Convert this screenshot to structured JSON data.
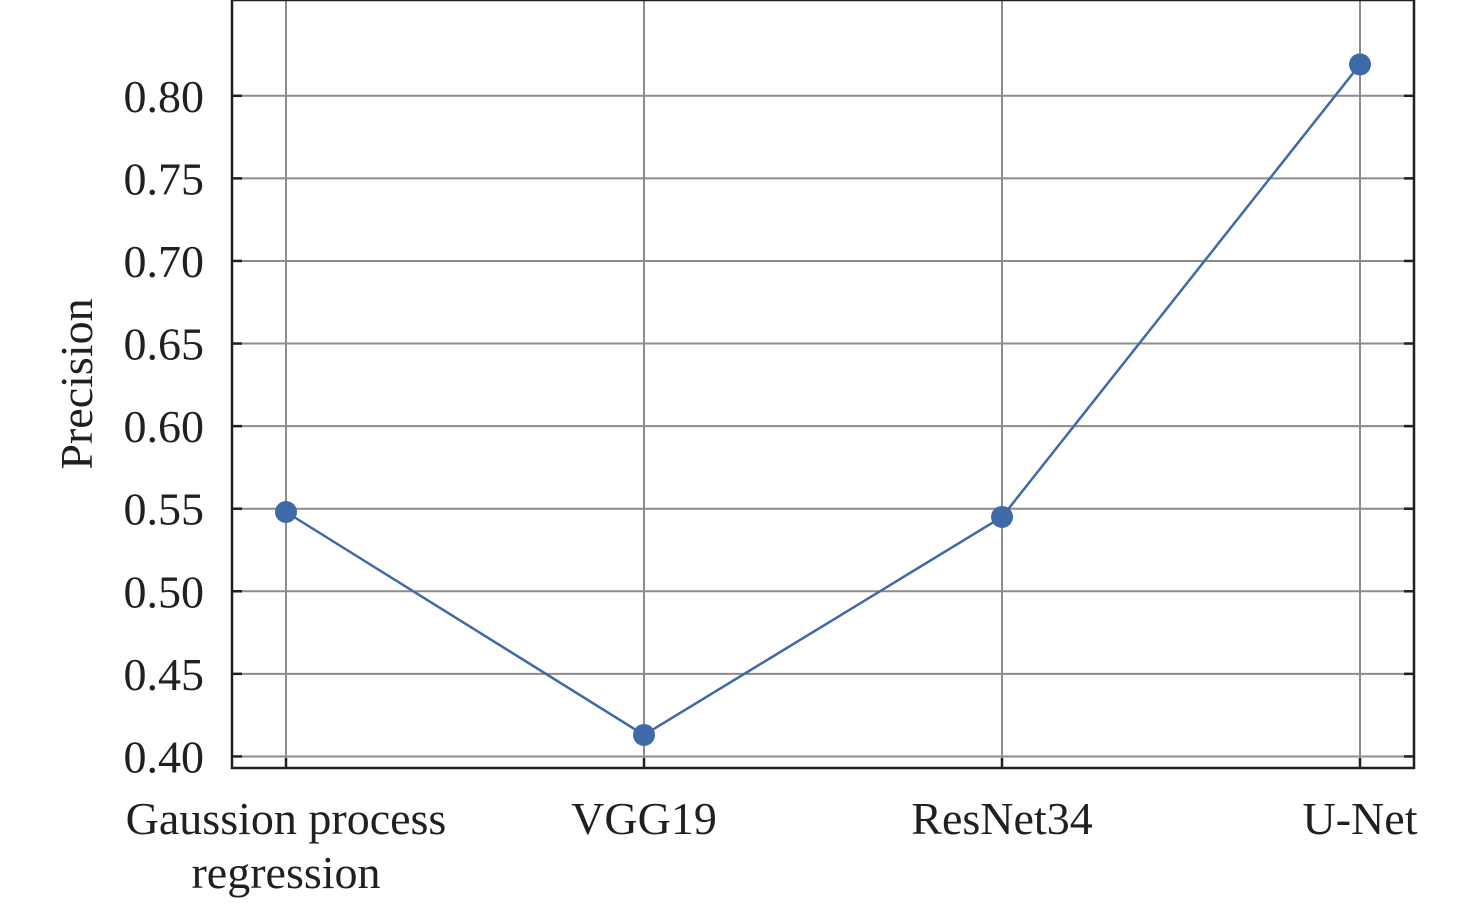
{
  "chart_data": {
    "type": "line",
    "categories": [
      [
        "Gaussion process",
        "regression"
      ],
      [
        "VGG19"
      ],
      [
        "ResNet34"
      ],
      [
        "U-Net"
      ]
    ],
    "series": [
      {
        "values": [
          0.548,
          0.413,
          0.545,
          0.819
        ]
      }
    ],
    "ylabel": "Precision",
    "xlabel": "",
    "ylim": [
      0.393,
      0.858
    ],
    "yticks": [
      "0.40",
      "0.45",
      "0.50",
      "0.55",
      "0.60",
      "0.65",
      "0.70",
      "0.75",
      "0.80"
    ],
    "grid": true,
    "line_color": "#3e6aa8",
    "marker_color": "#3e6aa8"
  }
}
